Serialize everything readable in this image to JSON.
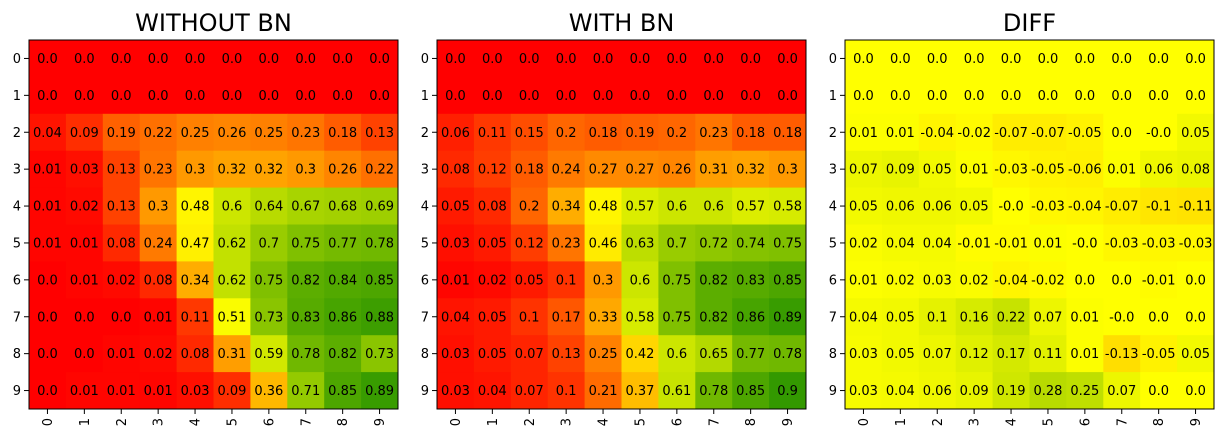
{
  "chart_data": [
    {
      "type": "heatmap",
      "title": "WITHOUT BN",
      "x_ticks": [
        "0",
        "1",
        "2",
        "3",
        "4",
        "5",
        "6",
        "7",
        "8",
        "9"
      ],
      "y_ticks": [
        "0",
        "1",
        "2",
        "3",
        "4",
        "5",
        "6",
        "7",
        "8",
        "9"
      ],
      "colormap": [
        "#ff0000",
        "#ffff00",
        "#008000"
      ],
      "vmin": 0,
      "vmax": 1,
      "values": [
        [
          0.0,
          0.0,
          0.0,
          0.0,
          0.0,
          0.0,
          0.0,
          0.0,
          0.0,
          0.0
        ],
        [
          0.0,
          0.0,
          0.0,
          0.0,
          0.0,
          0.0,
          0.0,
          0.0,
          0.0,
          0.0
        ],
        [
          0.04,
          0.09,
          0.19,
          0.22,
          0.25,
          0.26,
          0.25,
          0.23,
          0.18,
          0.13
        ],
        [
          0.01,
          0.03,
          0.13,
          0.23,
          0.3,
          0.32,
          0.32,
          0.3,
          0.26,
          0.22
        ],
        [
          0.01,
          0.02,
          0.13,
          0.3,
          0.48,
          0.6,
          0.64,
          0.67,
          0.68,
          0.69
        ],
        [
          0.01,
          0.01,
          0.08,
          0.24,
          0.47,
          0.62,
          0.7,
          0.75,
          0.77,
          0.78
        ],
        [
          0.0,
          0.01,
          0.02,
          0.08,
          0.34,
          0.62,
          0.75,
          0.82,
          0.84,
          0.85
        ],
        [
          0.0,
          0.0,
          0.0,
          0.01,
          0.11,
          0.51,
          0.73,
          0.83,
          0.86,
          0.88
        ],
        [
          0.0,
          0.0,
          0.01,
          0.02,
          0.08,
          0.31,
          0.59,
          0.78,
          0.82,
          0.73
        ],
        [
          0.0,
          0.01,
          0.01,
          0.01,
          0.03,
          0.09,
          0.36,
          0.71,
          0.85,
          0.89
        ]
      ]
    },
    {
      "type": "heatmap",
      "title": "WITH BN",
      "x_ticks": [
        "0",
        "1",
        "2",
        "3",
        "4",
        "5",
        "6",
        "7",
        "8",
        "9"
      ],
      "y_ticks": [
        "0",
        "1",
        "2",
        "3",
        "4",
        "5",
        "6",
        "7",
        "8",
        "9"
      ],
      "colormap": [
        "#ff0000",
        "#ffff00",
        "#008000"
      ],
      "vmin": 0,
      "vmax": 1,
      "values": [
        [
          0.0,
          0.0,
          0.0,
          0.0,
          0.0,
          0.0,
          0.0,
          0.0,
          0.0,
          0.0
        ],
        [
          0.0,
          0.0,
          0.0,
          0.0,
          0.0,
          0.0,
          0.0,
          0.0,
          0.0,
          0.0
        ],
        [
          0.06,
          0.11,
          0.15,
          0.2,
          0.18,
          0.19,
          0.2,
          0.23,
          0.18,
          0.18
        ],
        [
          0.08,
          0.12,
          0.18,
          0.24,
          0.27,
          0.27,
          0.26,
          0.31,
          0.32,
          0.3
        ],
        [
          0.05,
          0.08,
          0.2,
          0.34,
          0.48,
          0.57,
          0.6,
          0.6,
          0.57,
          0.58
        ],
        [
          0.03,
          0.05,
          0.12,
          0.23,
          0.46,
          0.63,
          0.7,
          0.72,
          0.74,
          0.75
        ],
        [
          0.01,
          0.02,
          0.05,
          0.1,
          0.3,
          0.6,
          0.75,
          0.82,
          0.83,
          0.85
        ],
        [
          0.04,
          0.05,
          0.1,
          0.17,
          0.33,
          0.58,
          0.75,
          0.82,
          0.86,
          0.89
        ],
        [
          0.03,
          0.05,
          0.07,
          0.13,
          0.25,
          0.42,
          0.6,
          0.65,
          0.77,
          0.78
        ],
        [
          0.03,
          0.04,
          0.07,
          0.1,
          0.21,
          0.37,
          0.61,
          0.78,
          0.85,
          0.9
        ]
      ]
    },
    {
      "type": "heatmap",
      "title": "DIFF",
      "x_ticks": [
        "0",
        "1",
        "2",
        "3",
        "4",
        "5",
        "6",
        "7",
        "8",
        "9"
      ],
      "y_ticks": [
        "0",
        "1",
        "2",
        "3",
        "4",
        "5",
        "6",
        "7",
        "8",
        "9"
      ],
      "colormap": [
        "#ff0000",
        "#ffff00",
        "#008000"
      ],
      "vmin": -1,
      "vmax": 1,
      "values": [
        [
          0.0,
          0.0,
          0.0,
          0.0,
          0.0,
          0.0,
          0.0,
          0.0,
          0.0,
          0.0
        ],
        [
          0.0,
          0.0,
          0.0,
          0.0,
          0.0,
          0.0,
          0.0,
          0.0,
          0.0,
          0.0
        ],
        [
          0.01,
          0.01,
          -0.04,
          -0.02,
          -0.07,
          -0.07,
          -0.05,
          0.0,
          -0.0,
          0.05
        ],
        [
          0.07,
          0.09,
          0.05,
          0.01,
          -0.03,
          -0.05,
          -0.06,
          0.01,
          0.06,
          0.08
        ],
        [
          0.05,
          0.06,
          0.06,
          0.05,
          -0.0,
          -0.03,
          -0.04,
          -0.07,
          -0.1,
          -0.11
        ],
        [
          0.02,
          0.04,
          0.04,
          -0.01,
          -0.01,
          0.01,
          -0.0,
          -0.03,
          -0.03,
          -0.03
        ],
        [
          0.01,
          0.02,
          0.03,
          0.02,
          -0.04,
          -0.02,
          0.0,
          0.0,
          -0.01,
          0.0
        ],
        [
          0.04,
          0.05,
          0.1,
          0.16,
          0.22,
          0.07,
          0.01,
          -0.0,
          0.0,
          0.0
        ],
        [
          0.03,
          0.05,
          0.07,
          0.12,
          0.17,
          0.11,
          0.01,
          -0.13,
          -0.05,
          0.05
        ],
        [
          0.03,
          0.04,
          0.06,
          0.09,
          0.19,
          0.28,
          0.25,
          0.07,
          0.0,
          0.0
        ]
      ]
    }
  ]
}
